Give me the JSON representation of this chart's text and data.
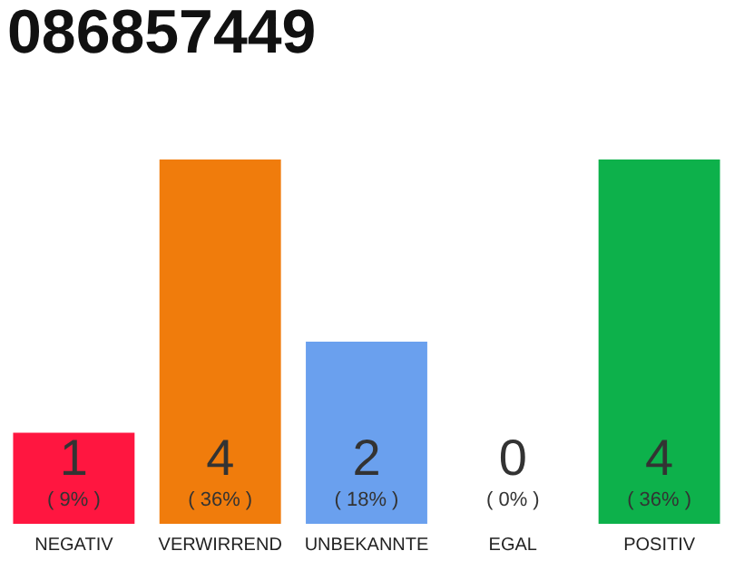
{
  "chart_data": {
    "type": "bar",
    "title": "086857449",
    "categories": [
      "NEGATIV",
      "VERWIRREND",
      "UNBEKANNTE",
      "EGAL",
      "POSITIV"
    ],
    "values": [
      1,
      4,
      2,
      0,
      4
    ],
    "colors": [
      "#ff1640",
      "#f07c0c",
      "#6aa0ee",
      "#aaaaaa",
      "#0db14b"
    ],
    "data_labels": true,
    "annotations": [
      "( 9% )",
      "( 36% )",
      "( 18% )",
      "( 0% )",
      "( 36% )"
    ]
  }
}
